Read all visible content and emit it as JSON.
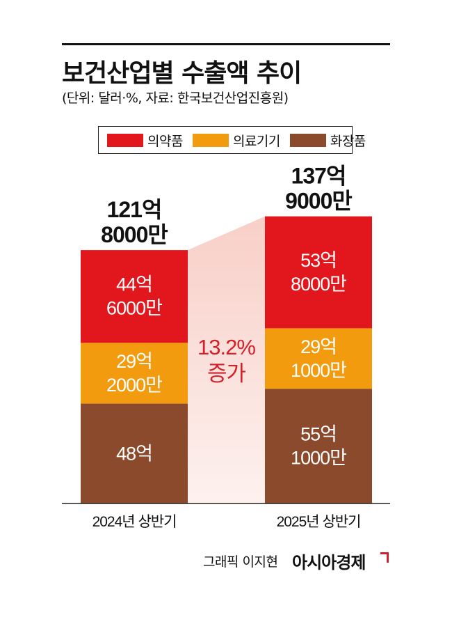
{
  "title": "보건산업별 수출액 추이",
  "subtitle": "(단위: 달러·%, 자료: 한국보건산업진흥원)",
  "legend": [
    {
      "label": "의약품",
      "color": "#e2171d"
    },
    {
      "label": "의료기기",
      "color": "#f39b0f"
    },
    {
      "label": "화장품",
      "color": "#8b4a2b"
    }
  ],
  "chart_data": {
    "type": "bar",
    "stacked": true,
    "unit": "억 달러",
    "categories": [
      "2024년 상반기",
      "2025년 상반기"
    ],
    "series": [
      {
        "name": "의약품",
        "color": "#e2171d",
        "values": [
          44.6,
          53.8
        ],
        "labels": [
          "44억|6000만",
          "53억|8000만"
        ]
      },
      {
        "name": "의료기기",
        "color": "#f39b0f",
        "values": [
          29.2,
          29.1
        ],
        "labels": [
          "29억|2000만",
          "29억|1000만"
        ]
      },
      {
        "name": "화장품",
        "color": "#8b4a2b",
        "values": [
          48.0,
          55.1
        ],
        "labels": [
          "48억",
          "55억|1000만"
        ]
      }
    ],
    "totals": [
      121.8,
      137.9
    ],
    "total_labels": [
      "121억|8000만",
      "137억|9000만"
    ],
    "growth": {
      "value": 13.2,
      "label": "13.2%|증가"
    },
    "ylim": [
      0,
      137.9
    ]
  },
  "credit": "그래픽 이지현",
  "logo": "아시아경제"
}
